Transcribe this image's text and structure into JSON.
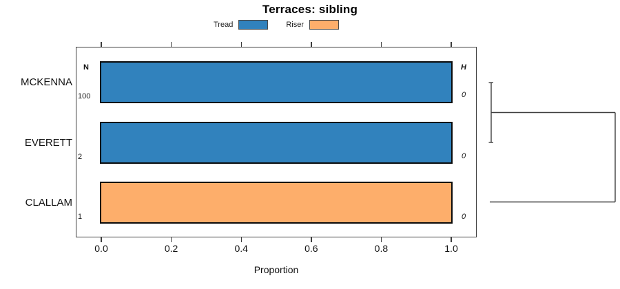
{
  "title": "Terraces: sibling",
  "chart_data": {
    "type": "bar",
    "orientation": "horizontal",
    "title": "Terraces: sibling",
    "xlabel": "Proportion",
    "xlim": [
      0.0,
      1.07
    ],
    "xticks": [
      0.0,
      0.2,
      0.4,
      0.6,
      0.8,
      1.0
    ],
    "xtick_labels": [
      "0.0",
      "0.2",
      "0.4",
      "0.6",
      "0.8",
      "1.0"
    ],
    "grid": false,
    "legend_position": "top",
    "legend": [
      {
        "label": "Tread",
        "color": "#3182BD"
      },
      {
        "label": "Riser",
        "color": "#FDAE6B"
      }
    ],
    "columns": {
      "left_header": "N",
      "right_header": "H"
    },
    "rows": [
      {
        "category": "MCKENNA",
        "n": "100",
        "h": "0",
        "segments": [
          {
            "series": "Tread",
            "value": 1.0
          }
        ]
      },
      {
        "category": "EVERETT",
        "n": "2",
        "h": "0",
        "segments": [
          {
            "series": "Tread",
            "value": 1.0
          }
        ]
      },
      {
        "category": "CLALLAM",
        "n": "1",
        "h": "0",
        "segments": [
          {
            "series": "Riser",
            "value": 1.0
          }
        ]
      }
    ],
    "dendrogram": {
      "position": "right",
      "leaves": [
        "MCKENNA",
        "EVERETT",
        "CLALLAM"
      ],
      "merges": [
        {
          "members": [
            "MCKENNA",
            "EVERETT"
          ],
          "relative_height": 0.02
        },
        {
          "members": [
            "MCKENNA+EVERETT",
            "CLALLAM"
          ],
          "relative_height": 1.0
        }
      ]
    }
  }
}
